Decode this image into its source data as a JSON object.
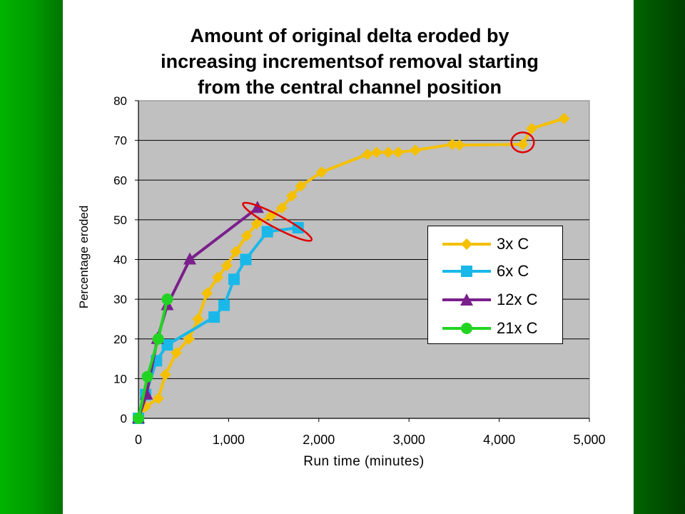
{
  "chart_data": {
    "type": "line",
    "title_lines": [
      "Amount of original delta eroded by",
      "increasing incrementsof removal starting",
      "from the central channel position"
    ],
    "xlabel": "Run time (minutes)",
    "ylabel": "Percentage eroded",
    "xlim": [
      0,
      5000
    ],
    "ylim": [
      0,
      80
    ],
    "x_ticks": [
      "0",
      "1,000",
      "2,000",
      "3,000",
      "4,000",
      "5,000"
    ],
    "y_ticks": [
      "0",
      "10",
      "20",
      "30",
      "40",
      "50",
      "60",
      "70",
      "80"
    ],
    "x_tick_values": [
      0,
      1000,
      2000,
      3000,
      4000,
      5000
    ],
    "y_tick_values": [
      0,
      10,
      20,
      30,
      40,
      50,
      60,
      70,
      80
    ],
    "grid": "horizontal",
    "plot_background": "#c0c0c0",
    "legend_position": "right-center",
    "series": [
      {
        "name": "3x C",
        "color": "#f5c000",
        "marker": "diamond",
        "x": [
          0,
          80,
          220,
          300,
          420,
          560,
          660,
          760,
          880,
          980,
          1080,
          1200,
          1310,
          1470,
          1590,
          1700,
          1800,
          2030,
          2540,
          2640,
          2770,
          2880,
          3070,
          3480,
          3560,
          4260,
          4360,
          4720
        ],
        "y": [
          0,
          3,
          5,
          11,
          16.5,
          20,
          25,
          31.5,
          35.5,
          38.5,
          42,
          46,
          49,
          51,
          53,
          56,
          58.5,
          62,
          66.5,
          67,
          67,
          67,
          67.5,
          69,
          68.8,
          69,
          73,
          75.5
        ]
      },
      {
        "name": "6x C",
        "color": "#1ab8e8",
        "marker": "square",
        "x": [
          0,
          80,
          200,
          320,
          840,
          950,
          1060,
          1190,
          1430,
          1770
        ],
        "y": [
          0,
          6,
          14.5,
          18.5,
          25.5,
          28.5,
          35,
          40,
          47,
          48
        ]
      },
      {
        "name": "12x C",
        "color": "#7b1f8c",
        "marker": "triangle",
        "x": [
          0,
          90,
          210,
          320,
          570,
          1320
        ],
        "y": [
          0,
          6,
          20,
          28.5,
          40,
          53
        ]
      },
      {
        "name": "21x C",
        "color": "#22d422",
        "marker": "circle",
        "x": [
          0,
          100,
          220,
          320
        ],
        "y": [
          0,
          10.5,
          20,
          30
        ]
      }
    ],
    "annotations": [
      {
        "type": "ellipse",
        "color": "#e00000",
        "cx": 1540,
        "cy": 49.5,
        "rx_data": 430,
        "ry_data": 1.6,
        "angle_deg": 28
      },
      {
        "type": "circle",
        "color": "#e00000",
        "cx": 4260,
        "cy": 69.5,
        "rx_data": 125,
        "ry_data": 2.5
      }
    ]
  }
}
